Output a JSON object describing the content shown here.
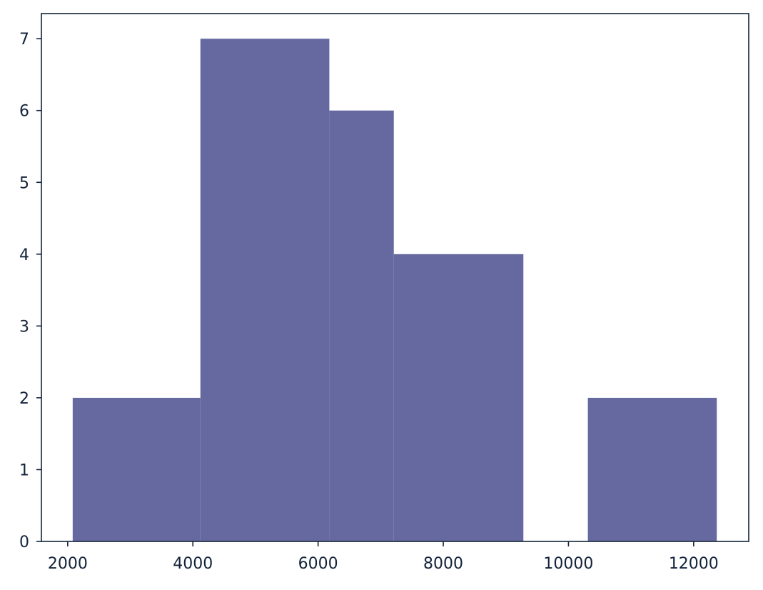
{
  "chart_data": {
    "type": "bar",
    "subtype": "histogram",
    "bar_color": "#66699f",
    "axis_color": "#13233a",
    "bins": [
      {
        "x0": 2080,
        "x1": 4120,
        "count": 2
      },
      {
        "x0": 4120,
        "x1": 6180,
        "count": 7
      },
      {
        "x0": 6180,
        "x1": 7210,
        "count": 6
      },
      {
        "x0": 7210,
        "x1": 9280,
        "count": 4
      },
      {
        "x0": 10310,
        "x1": 12370,
        "count": 2
      }
    ],
    "xlim": [
      1580,
      12880
    ],
    "ylim": [
      0,
      7.35
    ],
    "xticks": [
      2000,
      4000,
      6000,
      8000,
      10000,
      12000
    ],
    "xtick_labels": [
      "2000",
      "4000",
      "6000",
      "8000",
      "10000",
      "12000"
    ],
    "yticks": [
      0,
      1,
      2,
      3,
      4,
      5,
      6,
      7
    ],
    "ytick_labels": [
      "0",
      "1",
      "2",
      "3",
      "4",
      "5",
      "6",
      "7"
    ],
    "title": "",
    "xlabel": "",
    "ylabel": "",
    "grid": false,
    "legend": "none"
  }
}
